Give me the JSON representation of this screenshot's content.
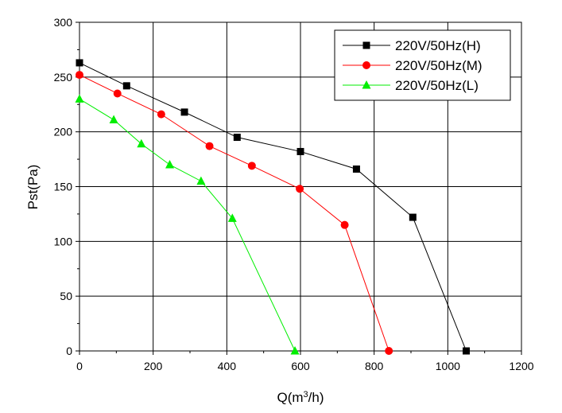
{
  "chart_data": {
    "type": "line",
    "title": "",
    "xlabel_main": "Q(m",
    "xlabel_sup": "3",
    "xlabel_end": "/h)",
    "ylabel": "Pst(Pa)",
    "xlim": [
      0,
      1200
    ],
    "ylim": [
      0,
      300
    ],
    "xticks": [
      0,
      200,
      400,
      600,
      800,
      1000,
      1200
    ],
    "yticks": [
      0,
      50,
      100,
      150,
      200,
      250,
      300
    ],
    "grid": true,
    "legend_position": "top-right",
    "series": [
      {
        "name": "220V/50Hz(H)",
        "color": "#000000",
        "marker": "square",
        "x": [
          0,
          128,
          285,
          428,
          600,
          752,
          905,
          1050
        ],
        "y": [
          263,
          242,
          218,
          195,
          182,
          166,
          122,
          0
        ]
      },
      {
        "name": "220V/50Hz(M)",
        "color": "#ff0000",
        "marker": "circle",
        "x": [
          0,
          103,
          222,
          353,
          468,
          598,
          720,
          840
        ],
        "y": [
          252,
          235,
          216,
          187,
          169,
          148,
          115,
          0
        ]
      },
      {
        "name": "220V/50Hz(L)",
        "color": "#00ee00",
        "marker": "triangle",
        "x": [
          0,
          93,
          168,
          245,
          330,
          415,
          585
        ],
        "y": [
          230,
          211,
          189,
          170,
          155,
          121,
          0
        ]
      }
    ]
  }
}
